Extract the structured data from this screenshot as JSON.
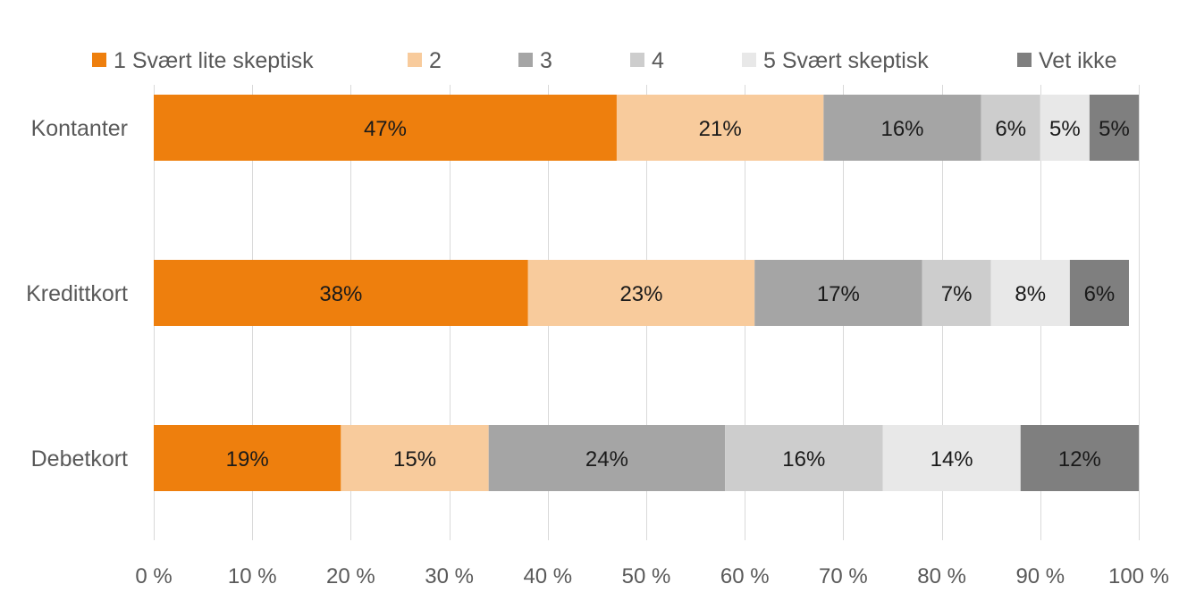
{
  "chart_data": {
    "type": "bar",
    "orientation": "horizontal",
    "stacked": true,
    "categories": [
      "Kontanter",
      "Kredittkort",
      "Debetkort"
    ],
    "series": [
      {
        "name": "1 Svært lite skeptisk",
        "color": "#EE7F0D",
        "values": [
          47,
          38,
          19
        ],
        "labels": [
          "47%",
          "38%",
          "19%"
        ]
      },
      {
        "name": "2",
        "color": "#F8CB9C",
        "values": [
          21,
          23,
          15
        ],
        "labels": [
          "21%",
          "23%",
          "15%"
        ]
      },
      {
        "name": "3",
        "color": "#A5A5A5",
        "values": [
          16,
          17,
          24
        ],
        "labels": [
          "16%",
          "17%",
          "24%"
        ]
      },
      {
        "name": "4",
        "color": "#CDCDCD",
        "values": [
          6,
          7,
          16
        ],
        "labels": [
          "6%",
          "7%",
          "16%"
        ]
      },
      {
        "name": "5 Svært skeptisk",
        "color": "#E8E8E8",
        "values": [
          5,
          8,
          14
        ],
        "labels": [
          "5%",
          "8%",
          "14%"
        ]
      },
      {
        "name": "Vet ikke",
        "color": "#7F7F7F",
        "values": [
          5,
          6,
          12
        ],
        "labels": [
          "5%",
          "6%",
          "12%"
        ]
      }
    ],
    "xlim": [
      0,
      100
    ],
    "x_ticks": [
      0,
      10,
      20,
      30,
      40,
      50,
      60,
      70,
      80,
      90,
      100
    ],
    "x_tick_labels": [
      "0 %",
      "10 %",
      "20 %",
      "30 %",
      "40 %",
      "50 %",
      "60 %",
      "70 %",
      "80 %",
      "90 %",
      "100 %"
    ],
    "grid": "vertical",
    "legend_position": "top",
    "title": "",
    "xlabel": "",
    "ylabel": ""
  }
}
